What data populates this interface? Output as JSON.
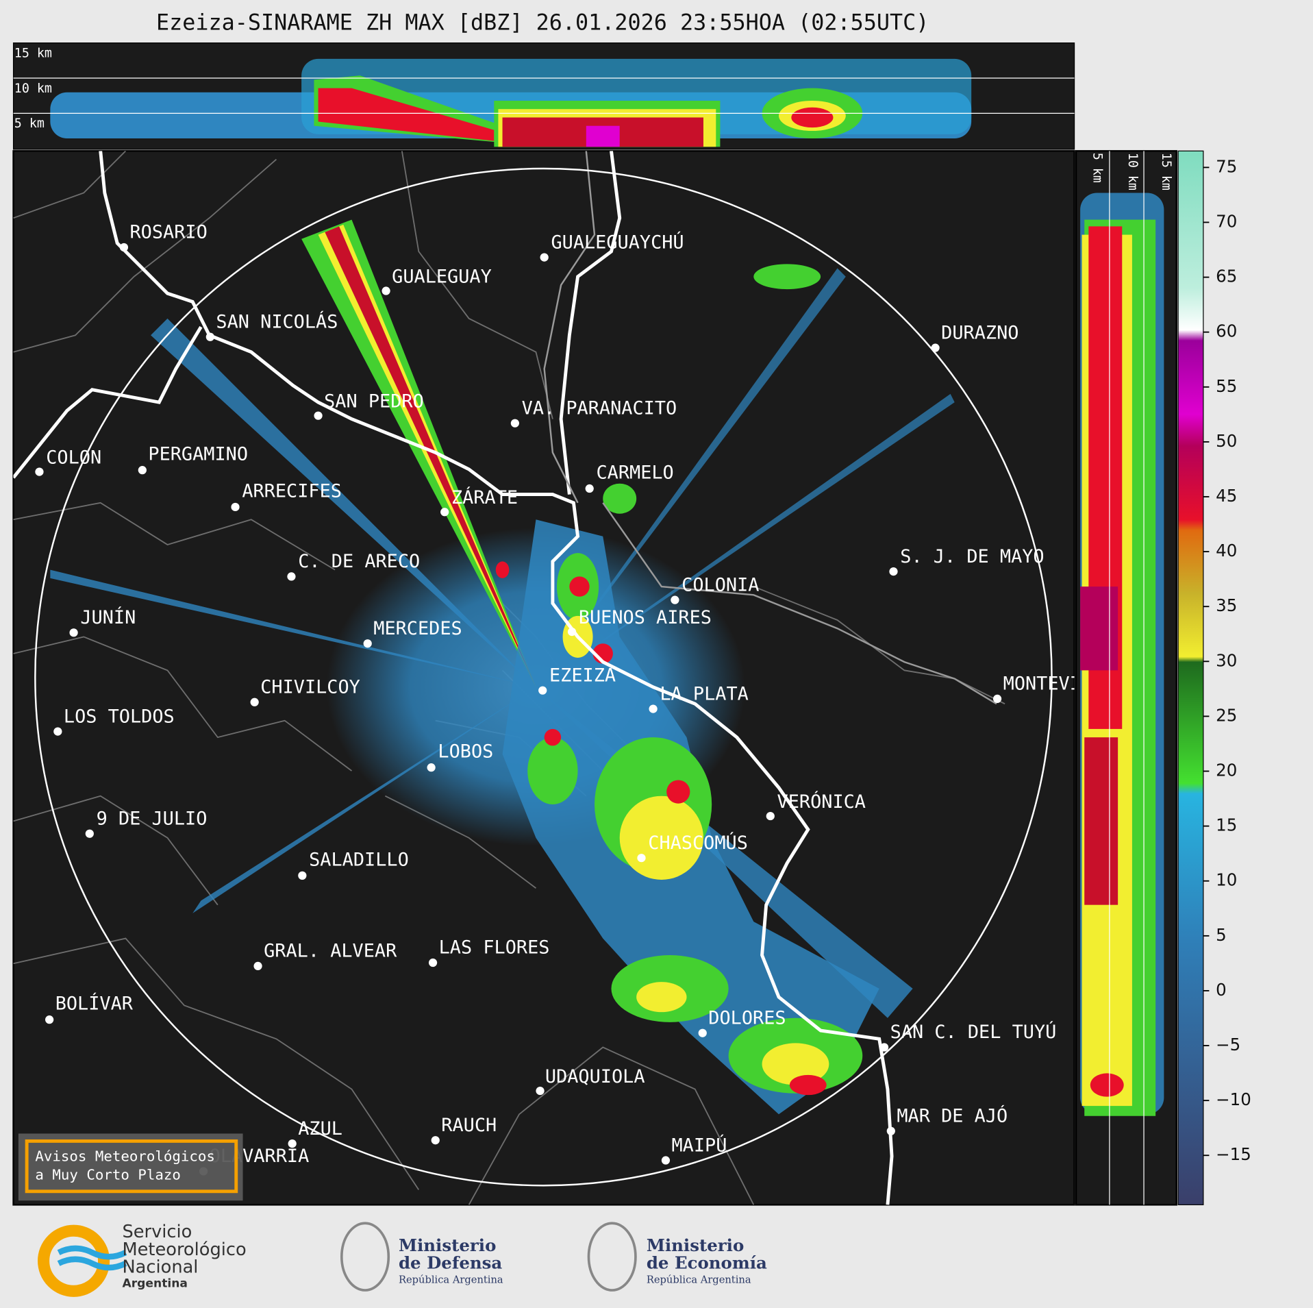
{
  "header": {
    "title": "Ezeiza-SINARAME ZH MAX [dBZ] 26.01.2026 23:55HOA (02:55UTC)"
  },
  "profile_top": {
    "height_labels": [
      "15 km",
      "10 km",
      "5 km"
    ]
  },
  "profile_right": {
    "height_labels": [
      "5 km",
      "10 km",
      "15 km"
    ]
  },
  "colorbar": {
    "lim": [
      -19.5,
      76.5
    ],
    "ticks": [
      75,
      70,
      65,
      60,
      55,
      50,
      45,
      40,
      35,
      30,
      25,
      20,
      15,
      10,
      5,
      0,
      {
        "value": -5,
        "label": "−5"
      },
      {
        "value": -10,
        "label": "−10"
      },
      {
        "value": -15,
        "label": "−15"
      }
    ]
  },
  "cities": [
    "ROSARIO",
    "GUALEGUAYCHÚ",
    "GUALEGUAY",
    "SAN NICOLÁS",
    "DURAZNO",
    "SAN PEDRO",
    "VA. PARANACITO",
    "COLON",
    "PERGAMINO",
    "CARMELO",
    "ARRECIFES",
    "ZÁRATE",
    "C. DE ARECO",
    "S. J. DE MAYO",
    "COLONIA",
    "BUENOS AIRES",
    "JUNÍN",
    "MERCEDES",
    "MONTEVIDEO",
    "EZEIZA",
    "CHIVILCOY",
    "LA PLATA",
    "LOS TOLDOS",
    "LOBOS",
    "VERÓNICA",
    "9 DE JULIO",
    "CHASCOMÚS",
    "SALADILLO",
    "GRAL. ALVEAR",
    "LAS FLORES",
    "BOLÍVAR",
    "DOLORES",
    "SAN C. DEL TUYÚ",
    "UDAQUIOLA",
    "MAR DE AJÓ",
    "RAUCH",
    "AZUL",
    "OLAVARRÍA",
    "MAIPÚ"
  ],
  "warning_box": {
    "lines": [
      "Avisos Meteorológicos",
      "a Muy Corto Plazo"
    ]
  },
  "footer": {
    "smn": {
      "lines": [
        "Servicio",
        "Meteorológico",
        "Nacional"
      ],
      "country": "Argentina"
    },
    "defensa": {
      "lines": [
        "Ministerio",
        "de Defensa"
      ],
      "country": "República Argentina"
    },
    "economia": {
      "lines": [
        "Ministerio",
        "de Economía"
      ],
      "country": "República Argentina"
    }
  }
}
